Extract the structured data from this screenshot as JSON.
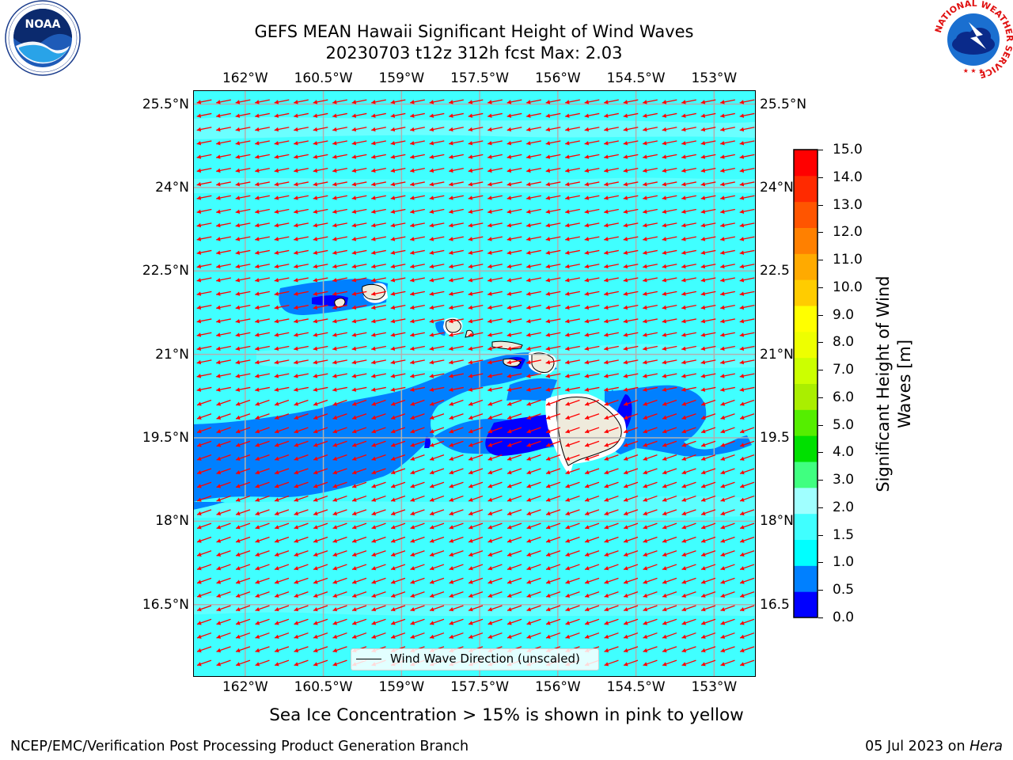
{
  "title_line1": "GEFS MEAN Hawaii Significant Height of Wind Waves",
  "title_line2": "20230703 t12z 312h fcst   Max: 2.03",
  "logos": {
    "left": {
      "name": "noaa-logo",
      "text": "NOAA",
      "ring_text": "NATIONAL OCEANIC AND ATMOSPHERIC ADMINISTRATION · U.S. DEPARTMENT OF COMMERCE"
    },
    "right": {
      "name": "nws-logo",
      "ring_text": "NATIONAL WEATHER SERVICE"
    }
  },
  "map": {
    "lon_ticks": [
      "162°W",
      "160.5°W",
      "159°W",
      "157.5°W",
      "156°W",
      "154.5°W",
      "153°W"
    ],
    "lon_values": [
      -162,
      -160.5,
      -159,
      -157.5,
      -156,
      -154.5,
      -153
    ],
    "lat_ticks_left": [
      "25.5°N",
      "24°N",
      "22.5°N",
      "21°N",
      "19.5°N",
      "18°N",
      "16.5°N"
    ],
    "lat_ticks_right": [
      "25.5°N",
      "24°N",
      "22.5",
      "21°N",
      "19.5",
      "18°N",
      "16.5"
    ],
    "lat_values": [
      25.5,
      24,
      22.5,
      21,
      19.5,
      18,
      16.5
    ],
    "extent": {
      "lon_min": -163,
      "lon_max": -152.2,
      "lat_min": 15.2,
      "lat_max": 25.75
    },
    "field": "Significant Height of Wind Waves",
    "max_value": 2.03,
    "arrow_color": "#ff0000",
    "land_color": "#efebdc",
    "grid_color": "#b0b0b0",
    "legend_label": "Wind Wave Direction (unscaled)"
  },
  "colorbar": {
    "title": "Significant Height of Wind Waves [m]",
    "title_line1": "Significant Height of Wind",
    "title_line2": "Waves [m]",
    "labels": [
      "0.0",
      "0.5",
      "1.0",
      "1.5",
      "2.0",
      "3.0",
      "4.0",
      "5.0",
      "6.0",
      "7.0",
      "8.0",
      "9.0",
      "10.0",
      "11.0",
      "12.0",
      "13.0",
      "14.0",
      "15.0"
    ],
    "colors": [
      "#0000ff",
      "#0080ff",
      "#00ffff",
      "#40ffff",
      "#a0ffff",
      "#40ff80",
      "#00e000",
      "#55ee00",
      "#aaee00",
      "#ccff00",
      "#eeff00",
      "#ffff00",
      "#ffcc00",
      "#ffaa00",
      "#ff8000",
      "#ff5500",
      "#ff2a00",
      "#ff0000"
    ]
  },
  "note": "Sea Ice Concentration > 15% is shown in pink to yellow",
  "footer_left": "NCEP/EMC/Verification Post Processing Product Generation Branch",
  "footer_right_prefix": "05 Jul 2023 on ",
  "footer_right_host": "Hera"
}
